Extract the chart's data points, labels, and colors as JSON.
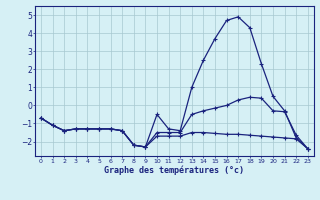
{
  "title": "Graphe des températures (°c)",
  "background_color": "#d6f0f5",
  "grid_color": "#a8c8d0",
  "line_color": "#1a237e",
  "xlim": [
    -0.5,
    23.5
  ],
  "ylim": [
    -2.8,
    5.5
  ],
  "yticks": [
    -2,
    -1,
    0,
    1,
    2,
    3,
    4,
    5
  ],
  "xticks": [
    0,
    1,
    2,
    3,
    4,
    5,
    6,
    7,
    8,
    9,
    10,
    11,
    12,
    13,
    14,
    15,
    16,
    17,
    18,
    19,
    20,
    21,
    22,
    23
  ],
  "hours": [
    0,
    1,
    2,
    3,
    4,
    5,
    6,
    7,
    8,
    9,
    10,
    11,
    12,
    13,
    14,
    15,
    16,
    17,
    18,
    19,
    20,
    21,
    22,
    23
  ],
  "temp_main": [
    -0.7,
    -1.1,
    -1.4,
    -1.3,
    -1.3,
    -1.3,
    -1.3,
    -1.4,
    -2.2,
    -2.3,
    -0.5,
    -1.3,
    -1.4,
    1.0,
    2.5,
    3.7,
    4.7,
    4.9,
    4.3,
    2.3,
    0.5,
    -0.3,
    -1.8,
    -2.4
  ],
  "temp_line2": [
    -0.7,
    -1.1,
    -1.4,
    -1.3,
    -1.3,
    -1.3,
    -1.3,
    -1.4,
    -2.2,
    -2.3,
    -1.5,
    -1.5,
    -1.5,
    -0.5,
    -0.3,
    -0.15,
    0.0,
    0.3,
    0.45,
    0.4,
    -0.3,
    -0.35,
    -1.65,
    -2.4
  ],
  "temp_line3": [
    -0.7,
    -1.1,
    -1.4,
    -1.3,
    -1.3,
    -1.3,
    -1.3,
    -1.4,
    -2.2,
    -2.3,
    -1.7,
    -1.7,
    -1.7,
    -1.5,
    -1.5,
    -1.55,
    -1.6,
    -1.6,
    -1.65,
    -1.7,
    -1.75,
    -1.8,
    -1.85,
    -2.4
  ]
}
